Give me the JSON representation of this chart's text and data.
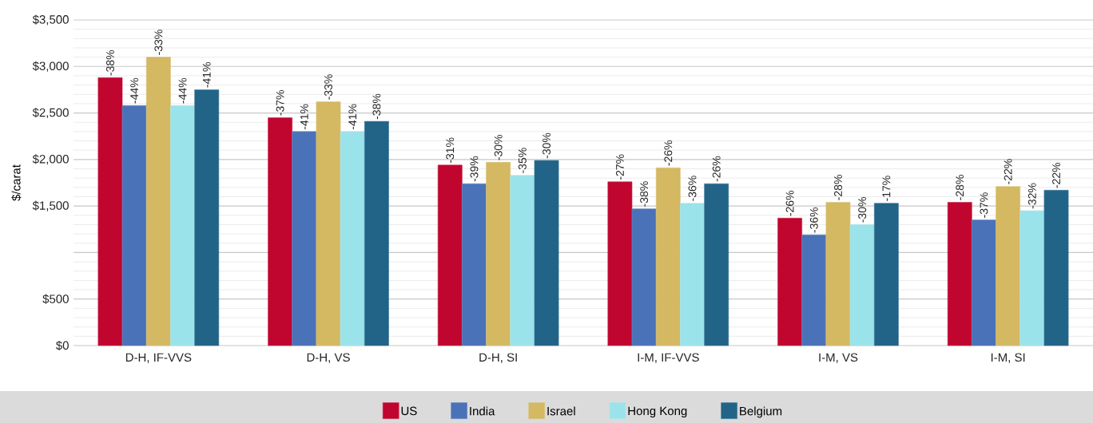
{
  "chart_data": {
    "type": "bar",
    "ylabel": "$/carat",
    "categories": [
      "D-H, IF-VVS",
      "D-H, VS",
      "D-H, SI",
      "I-M, IF-VVS",
      "I-M, VS",
      "I-M, SI"
    ],
    "series": [
      {
        "name": "US",
        "color": "#c0052f",
        "values": [
          2880,
          2450,
          1940,
          1760,
          1370,
          1540
        ]
      },
      {
        "name": "India",
        "color": "#4a72b8",
        "values": [
          2580,
          2300,
          1740,
          1470,
          1190,
          1350
        ]
      },
      {
        "name": "Israel",
        "color": "#d4b862",
        "values": [
          3100,
          2620,
          1970,
          1910,
          1540,
          1710
        ]
      },
      {
        "name": "Hong Kong",
        "color": "#9be3ea",
        "values": [
          2580,
          2300,
          1830,
          1530,
          1300,
          1450
        ]
      },
      {
        "name": "Belgium",
        "color": "#216488",
        "values": [
          2750,
          2410,
          1990,
          1740,
          1530,
          1670
        ]
      }
    ],
    "annotations": [
      "-38%",
      "-37%",
      "-31%",
      "-27%",
      "-26%",
      "-28%",
      "-44%",
      "-41%",
      "-39%",
      "-38%",
      "-36%",
      "-37%",
      "-33%",
      "-33%",
      "-30%",
      "-26%",
      "-28%",
      "-22%",
      "-44%",
      "-41%",
      "-35%",
      "-36%",
      "-30%",
      "-32%",
      "-41%",
      "-38%",
      "-30%",
      "-26%",
      "-17%",
      "-22%"
    ],
    "ylim": [
      0,
      3500
    ],
    "yticks": [
      {
        "value": 0,
        "label": "$0"
      },
      {
        "value": 500,
        "label": "$500"
      },
      {
        "value": 1000,
        "label": null
      },
      {
        "value": 1500,
        "label": "$1,500"
      },
      {
        "value": 2000,
        "label": "$2,000"
      },
      {
        "value": 2500,
        "label": "$2,500"
      },
      {
        "value": 3000,
        "label": "$3,000"
      },
      {
        "value": 3500,
        "label": "$3,500"
      }
    ],
    "grid": "y",
    "legend": "bottom"
  }
}
